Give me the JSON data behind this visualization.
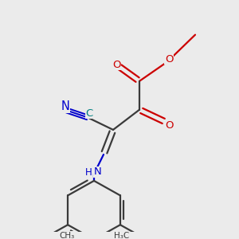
{
  "background_color": "#ebebeb",
  "bond_color": "#3a3a3a",
  "oxygen_color": "#cc0000",
  "nitrogen_color": "#0000cc",
  "teal_color": "#008080",
  "figsize": [
    3.0,
    3.0
  ],
  "dpi": 100,
  "xlim": [
    0,
    300
  ],
  "ylim": [
    0,
    300
  ]
}
